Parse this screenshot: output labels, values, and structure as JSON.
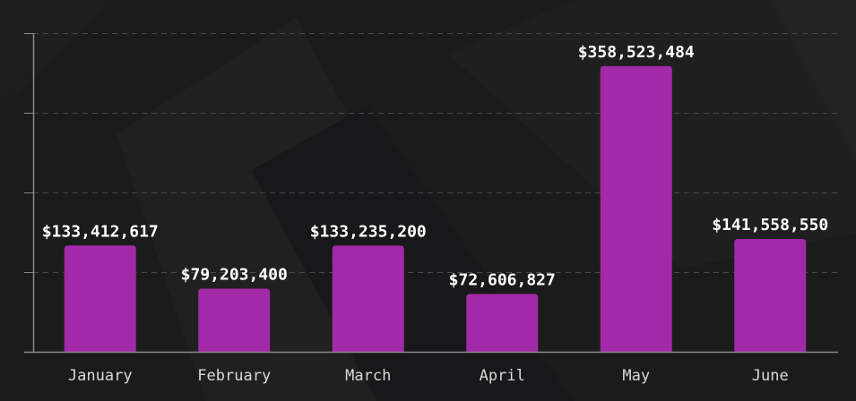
{
  "chart_data": {
    "type": "bar",
    "categories": [
      "January",
      "February",
      "March",
      "April",
      "May",
      "June"
    ],
    "values": [
      133412617,
      79203400,
      133235200,
      72606827,
      358523484,
      141558550
    ],
    "data_labels": [
      "$133,412,617",
      "$79,203,400",
      "$133,235,200",
      "$72,606,827",
      "$358,523,484",
      "$141,558,550"
    ],
    "ylim": [
      0,
      400000000
    ],
    "y_gridlines": [
      100000000,
      200000000,
      300000000,
      400000000
    ],
    "grid": true,
    "legend": "none",
    "colors": {
      "bar": "#a22aa9",
      "background": "#1b1b1c",
      "grid": "#4a4a4a",
      "axis": "#8a8a8a",
      "label": "#ffffff",
      "tick": "#d9d9d9"
    }
  }
}
